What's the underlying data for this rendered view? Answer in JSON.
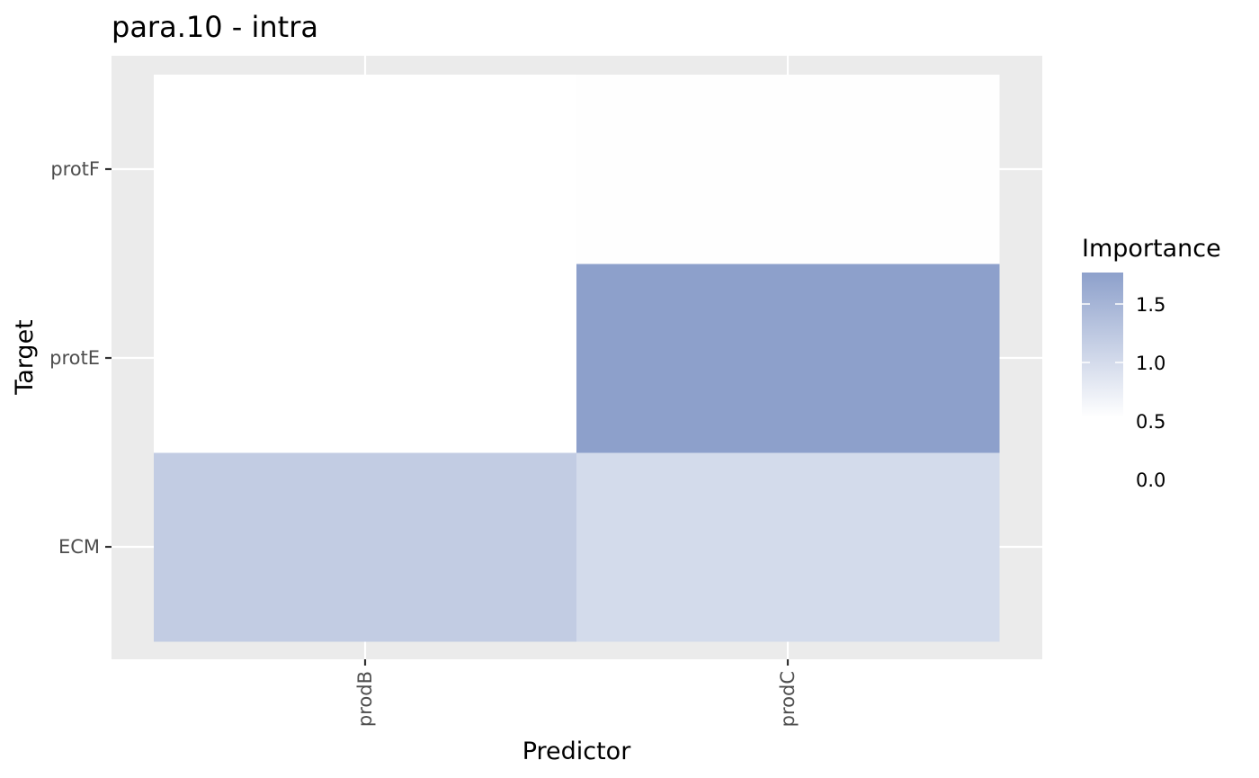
{
  "chart_data": {
    "type": "heatmap",
    "title": "para.10 - intra",
    "xlabel": "Predictor",
    "ylabel": "Target",
    "x_categories": [
      "prodB",
      "prodC"
    ],
    "y_categories": [
      "ECM",
      "protE",
      "protF"
    ],
    "cells": [
      {
        "x": "prodB",
        "y": "ECM",
        "value": 0.95
      },
      {
        "x": "prodC",
        "y": "ECM",
        "value": 0.68
      },
      {
        "x": "prodB",
        "y": "protE",
        "value": 0.0
      },
      {
        "x": "prodC",
        "y": "protE",
        "value": 1.78
      },
      {
        "x": "prodB",
        "y": "protF",
        "value": 0.0
      },
      {
        "x": "prodC",
        "y": "protF",
        "value": 0.02
      }
    ],
    "legend": {
      "title": "Importance",
      "breaks": [
        "0.0",
        "0.5",
        "1.0",
        "1.5"
      ],
      "break_values": [
        0.0,
        0.5,
        1.0,
        1.5
      ],
      "range": [
        0.0,
        1.78
      ],
      "low_color": "#ffffff",
      "high_color": "#8da0cb"
    },
    "grid": true,
    "legend_position": "right"
  }
}
